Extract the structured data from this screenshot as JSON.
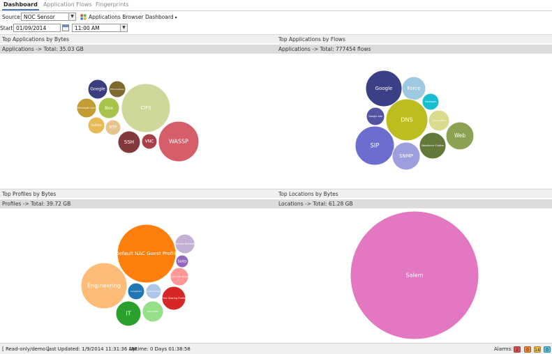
{
  "tabs": [
    "Dashboard",
    "Application Flows",
    "Fingerprints"
  ],
  "source": {
    "label": "Source:",
    "value": "NOC Sensor"
  },
  "dashboard_select": "Applications Browser Dashboard",
  "start": {
    "label": "Start:",
    "date": "01/09/2014",
    "time": "11:00 AM"
  },
  "panels": {
    "apps_bytes": {
      "title": "Top Applications by Bytes",
      "total": "Applications -> Total: 35.03 GB"
    },
    "apps_flows": {
      "title": "Top Applications by Flows",
      "total": "Applications -> Total: 777454 flows"
    },
    "profiles_bytes": {
      "title": "Top Profiles by Bytes",
      "total": "Profiles -> Total: 39.72 GB"
    },
    "locations_bytes": {
      "title": "Top Locations by Bytes",
      "total": "Locations -> Total: 61.28 GB"
    }
  },
  "bubbles": {
    "apps_bytes": [
      {
        "label": "Google",
        "color": "#3a3e7e"
      },
      {
        "label": "Ethernet/app",
        "color": "#7e6a2e"
      },
      {
        "label": "Microsoft Corp",
        "color": "#c29d34"
      },
      {
        "label": "Box",
        "color": "#a6c44a"
      },
      {
        "label": "CIFS",
        "color": "#cfd89a"
      },
      {
        "label": "Outlook",
        "color": "#e7ba55"
      },
      {
        "label": "RTP",
        "color": "#e6c48c"
      },
      {
        "label": "SSH",
        "color": "#83393c"
      },
      {
        "label": "VNC",
        "color": "#a83f48"
      },
      {
        "label": "WASSP",
        "color": "#d65e6a"
      }
    ],
    "apps_flows": [
      {
        "label": "Google",
        "color": "#3b3f86"
      },
      {
        "label": "Force",
        "color": "#9ecae1"
      },
      {
        "label": "Facebook",
        "color": "#17becf"
      },
      {
        "label": "Google Ads",
        "color": "#5254a3"
      },
      {
        "label": "DNS",
        "color": "#bdbd22"
      },
      {
        "label": "Google Video",
        "color": "#dbdb8d"
      },
      {
        "label": "Web",
        "color": "#8ca252"
      },
      {
        "label": "SIP",
        "color": "#6b6ecf"
      },
      {
        "label": "Salesforce Chatter",
        "color": "#637939"
      },
      {
        "label": "SNMP",
        "color": "#9c9ede"
      }
    ],
    "profiles_bytes": [
      {
        "label": "Default NAC Guest Profile",
        "color": "#ff7f0e"
      },
      {
        "label": "Secure Devices",
        "color": "#c5b0d5"
      },
      {
        "label": "Sales",
        "color": "#9467bd"
      },
      {
        "label": "Contractor Profile",
        "color": "#ff9896"
      },
      {
        "label": "Engineering",
        "color": "#ffbb78"
      },
      {
        "label": "Unregistered",
        "color": "#1f77b4"
      },
      {
        "label": "Guest Access",
        "color": "#aec7e8"
      },
      {
        "label": "Print Sharing Profile",
        "color": "#d62728"
      },
      {
        "label": "IT",
        "color": "#2ca02c"
      },
      {
        "label": "Test Profile",
        "color": "#98df8a"
      }
    ],
    "locations_bytes": [
      {
        "label": "Salem",
        "color": "#e377c2"
      }
    ]
  },
  "status": {
    "mode": "[ Read-only/demo ]",
    "last_updated": "Last Updated: 1/9/2014 11:31:36 AM",
    "uptime": "Uptime: 0 Days 01:38:58",
    "alarms_label": "Alarms:",
    "alarms": [
      {
        "count": "2",
        "color": "#d9534f"
      },
      {
        "count": "0",
        "color": "#f0883a"
      },
      {
        "count": "14",
        "color": "#f0c040"
      },
      {
        "count": "0",
        "color": "#5bc0de"
      }
    ]
  }
}
